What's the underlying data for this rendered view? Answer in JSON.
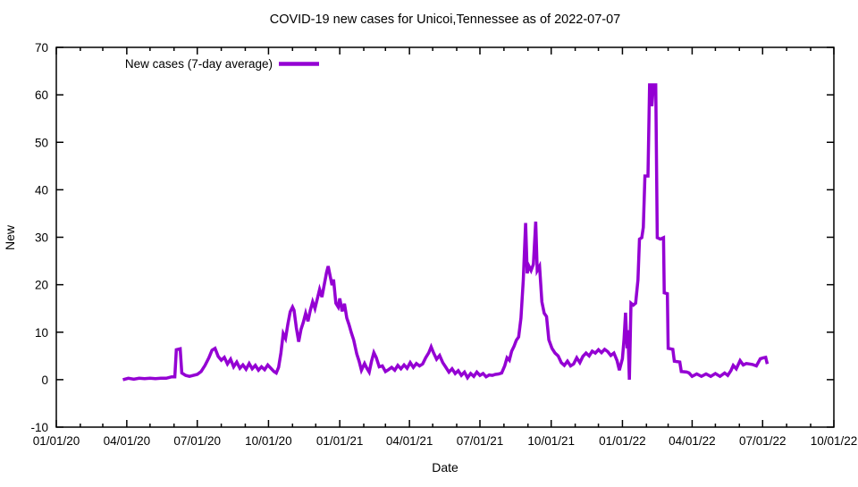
{
  "window": {
    "background": "#FFFFFF"
  },
  "chart_data": {
    "type": "line",
    "title": "COVID-19 new cases for Unicoi,Tennessee as of 2022-07-07",
    "xlabel": "Date",
    "ylabel": "New",
    "ylim": [
      -10,
      70
    ],
    "xlim": [
      "2020-01-01",
      "2022-10-01"
    ],
    "grid": false,
    "axis_color": "#000000",
    "y_ticks": [
      -10,
      0,
      10,
      20,
      30,
      40,
      50,
      60,
      70
    ],
    "x_major_ticks": [
      {
        "label": "01/01/20",
        "date": "2020-01-01"
      },
      {
        "label": "04/01/20",
        "date": "2020-04-01"
      },
      {
        "label": "07/01/20",
        "date": "2020-07-01"
      },
      {
        "label": "10/01/20",
        "date": "2020-10-01"
      },
      {
        "label": "01/01/21",
        "date": "2021-01-01"
      },
      {
        "label": "04/01/21",
        "date": "2021-04-01"
      },
      {
        "label": "07/01/21",
        "date": "2021-07-01"
      },
      {
        "label": "10/01/21",
        "date": "2021-10-01"
      },
      {
        "label": "01/01/22",
        "date": "2022-01-01"
      },
      {
        "label": "04/01/22",
        "date": "2022-04-01"
      },
      {
        "label": "07/01/22",
        "date": "2022-07-01"
      },
      {
        "label": "10/01/22",
        "date": "2022-10-01"
      }
    ],
    "x_minor_ticks": "monthly",
    "legend": {
      "position": "top-left"
    },
    "series": [
      {
        "name": "New cases (7-day average)",
        "color": "#9400D3",
        "points": [
          [
            "2020-03-27",
            0.0
          ],
          [
            "2020-04-03",
            0.3
          ],
          [
            "2020-04-10",
            0.1
          ],
          [
            "2020-04-17",
            0.3
          ],
          [
            "2020-04-24",
            0.2
          ],
          [
            "2020-05-01",
            0.3
          ],
          [
            "2020-05-08",
            0.2
          ],
          [
            "2020-05-15",
            0.3
          ],
          [
            "2020-05-22",
            0.3
          ],
          [
            "2020-05-29",
            0.6
          ],
          [
            "2020-06-02",
            0.6
          ],
          [
            "2020-06-04",
            6.3
          ],
          [
            "2020-06-09",
            6.5
          ],
          [
            "2020-06-11",
            1.4
          ],
          [
            "2020-06-16",
            0.9
          ],
          [
            "2020-06-21",
            0.7
          ],
          [
            "2020-06-26",
            0.9
          ],
          [
            "2020-07-01",
            1.1
          ],
          [
            "2020-07-06",
            1.7
          ],
          [
            "2020-07-11",
            3.0
          ],
          [
            "2020-07-16",
            4.6
          ],
          [
            "2020-07-20",
            6.2
          ],
          [
            "2020-07-24",
            6.6
          ],
          [
            "2020-07-28",
            4.9
          ],
          [
            "2020-08-01",
            4.1
          ],
          [
            "2020-08-05",
            4.7
          ],
          [
            "2020-08-09",
            3.3
          ],
          [
            "2020-08-13",
            4.3
          ],
          [
            "2020-08-17",
            2.7
          ],
          [
            "2020-08-21",
            3.7
          ],
          [
            "2020-08-25",
            2.4
          ],
          [
            "2020-08-29",
            3.1
          ],
          [
            "2020-09-02",
            2.2
          ],
          [
            "2020-09-06",
            3.4
          ],
          [
            "2020-09-10",
            2.3
          ],
          [
            "2020-09-14",
            3.0
          ],
          [
            "2020-09-18",
            2.0
          ],
          [
            "2020-09-22",
            2.7
          ],
          [
            "2020-09-26",
            2.1
          ],
          [
            "2020-09-30",
            3.1
          ],
          [
            "2020-10-04",
            2.4
          ],
          [
            "2020-10-08",
            1.7
          ],
          [
            "2020-10-11",
            1.4
          ],
          [
            "2020-10-14",
            2.6
          ],
          [
            "2020-10-17",
            5.6
          ],
          [
            "2020-10-20",
            9.7
          ],
          [
            "2020-10-23",
            8.7
          ],
          [
            "2020-10-26",
            11.7
          ],
          [
            "2020-10-29",
            14.3
          ],
          [
            "2020-11-01",
            15.3
          ],
          [
            "2020-11-03",
            14.6
          ],
          [
            "2020-11-06",
            10.9
          ],
          [
            "2020-11-09",
            8.0
          ],
          [
            "2020-11-12",
            10.6
          ],
          [
            "2020-11-15",
            12.1
          ],
          [
            "2020-11-18",
            14.0
          ],
          [
            "2020-11-21",
            12.3
          ],
          [
            "2020-11-24",
            14.6
          ],
          [
            "2020-11-27",
            16.4
          ],
          [
            "2020-11-30",
            15.0
          ],
          [
            "2020-12-03",
            17.0
          ],
          [
            "2020-12-06",
            19.0
          ],
          [
            "2020-12-09",
            17.4
          ],
          [
            "2020-12-12",
            20.0
          ],
          [
            "2020-12-15",
            22.6
          ],
          [
            "2020-12-17",
            23.9
          ],
          [
            "2020-12-19",
            22.3
          ],
          [
            "2020-12-22",
            19.9
          ],
          [
            "2020-12-24",
            21.1
          ],
          [
            "2020-12-27",
            16.1
          ],
          [
            "2020-12-30",
            15.3
          ],
          [
            "2021-01-01",
            17.1
          ],
          [
            "2021-01-04",
            14.4
          ],
          [
            "2021-01-07",
            16.0
          ],
          [
            "2021-01-10",
            13.0
          ],
          [
            "2021-01-13",
            11.6
          ],
          [
            "2021-01-16",
            9.9
          ],
          [
            "2021-01-19",
            8.4
          ],
          [
            "2021-01-23",
            5.4
          ],
          [
            "2021-01-26",
            3.9
          ],
          [
            "2021-01-29",
            2.0
          ],
          [
            "2021-02-02",
            3.4
          ],
          [
            "2021-02-05",
            2.4
          ],
          [
            "2021-02-08",
            1.6
          ],
          [
            "2021-02-11",
            3.9
          ],
          [
            "2021-02-14",
            5.7
          ],
          [
            "2021-02-17",
            4.7
          ],
          [
            "2021-02-21",
            2.7
          ],
          [
            "2021-02-25",
            2.9
          ],
          [
            "2021-03-01",
            1.7
          ],
          [
            "2021-03-05",
            2.1
          ],
          [
            "2021-03-09",
            2.6
          ],
          [
            "2021-03-13",
            2.0
          ],
          [
            "2021-03-17",
            3.0
          ],
          [
            "2021-03-21",
            2.3
          ],
          [
            "2021-03-25",
            3.1
          ],
          [
            "2021-03-29",
            2.4
          ],
          [
            "2021-04-02",
            3.6
          ],
          [
            "2021-04-06",
            2.6
          ],
          [
            "2021-04-10",
            3.4
          ],
          [
            "2021-04-14",
            2.9
          ],
          [
            "2021-04-18",
            3.3
          ],
          [
            "2021-04-22",
            4.6
          ],
          [
            "2021-04-26",
            5.7
          ],
          [
            "2021-04-29",
            6.9
          ],
          [
            "2021-05-02",
            5.7
          ],
          [
            "2021-05-06",
            4.3
          ],
          [
            "2021-05-10",
            5.1
          ],
          [
            "2021-05-14",
            3.6
          ],
          [
            "2021-05-18",
            2.6
          ],
          [
            "2021-05-22",
            1.6
          ],
          [
            "2021-05-26",
            2.3
          ],
          [
            "2021-05-30",
            1.3
          ],
          [
            "2021-06-03",
            1.9
          ],
          [
            "2021-06-07",
            0.9
          ],
          [
            "2021-06-11",
            1.6
          ],
          [
            "2021-06-15",
            0.4
          ],
          [
            "2021-06-19",
            1.3
          ],
          [
            "2021-06-23",
            0.7
          ],
          [
            "2021-06-27",
            1.6
          ],
          [
            "2021-07-01",
            0.9
          ],
          [
            "2021-07-05",
            1.3
          ],
          [
            "2021-07-09",
            0.6
          ],
          [
            "2021-07-13",
            1.0
          ],
          [
            "2021-07-17",
            0.9
          ],
          [
            "2021-07-21",
            1.1
          ],
          [
            "2021-07-25",
            1.2
          ],
          [
            "2021-07-29",
            1.4
          ],
          [
            "2021-08-02",
            2.9
          ],
          [
            "2021-08-05",
            4.6
          ],
          [
            "2021-08-08",
            4.1
          ],
          [
            "2021-08-11",
            6.0
          ],
          [
            "2021-08-14",
            7.0
          ],
          [
            "2021-08-17",
            8.3
          ],
          [
            "2021-08-20",
            9.0
          ],
          [
            "2021-08-23",
            13.0
          ],
          [
            "2021-08-26",
            21.0
          ],
          [
            "2021-08-29",
            33.0
          ],
          [
            "2021-08-31",
            22.4
          ],
          [
            "2021-09-02",
            24.0
          ],
          [
            "2021-09-05",
            23.0
          ],
          [
            "2021-09-08",
            24.3
          ],
          [
            "2021-09-11",
            33.3
          ],
          [
            "2021-09-13",
            23.0
          ],
          [
            "2021-09-16",
            23.9
          ],
          [
            "2021-09-19",
            16.4
          ],
          [
            "2021-09-22",
            14.0
          ],
          [
            "2021-09-25",
            13.3
          ],
          [
            "2021-09-28",
            8.4
          ],
          [
            "2021-10-02",
            6.6
          ],
          [
            "2021-10-06",
            5.6
          ],
          [
            "2021-10-10",
            5.0
          ],
          [
            "2021-10-14",
            3.6
          ],
          [
            "2021-10-18",
            3.0
          ],
          [
            "2021-10-22",
            3.9
          ],
          [
            "2021-10-26",
            2.9
          ],
          [
            "2021-10-30",
            3.3
          ],
          [
            "2021-11-03",
            4.6
          ],
          [
            "2021-11-07",
            3.6
          ],
          [
            "2021-11-11",
            4.9
          ],
          [
            "2021-11-15",
            5.6
          ],
          [
            "2021-11-19",
            5.0
          ],
          [
            "2021-11-23",
            6.0
          ],
          [
            "2021-11-27",
            5.6
          ],
          [
            "2021-12-01",
            6.3
          ],
          [
            "2021-12-05",
            5.7
          ],
          [
            "2021-12-09",
            6.4
          ],
          [
            "2021-12-13",
            5.9
          ],
          [
            "2021-12-17",
            5.1
          ],
          [
            "2021-12-21",
            5.6
          ],
          [
            "2021-12-25",
            4.0
          ],
          [
            "2021-12-28",
            2.0
          ],
          [
            "2022-01-01",
            4.4
          ],
          [
            "2022-01-03",
            8.5
          ],
          [
            "2022-01-05",
            14.1
          ],
          [
            "2022-01-07",
            6.6
          ],
          [
            "2022-01-08",
            10.4
          ],
          [
            "2022-01-10",
            0.0
          ],
          [
            "2022-01-12",
            16.1
          ],
          [
            "2022-01-15",
            15.7
          ],
          [
            "2022-01-18",
            16.1
          ],
          [
            "2022-01-21",
            21.0
          ],
          [
            "2022-01-23",
            29.6
          ],
          [
            "2022-01-26",
            29.9
          ],
          [
            "2022-01-28",
            32.1
          ],
          [
            "2022-01-30",
            42.9
          ],
          [
            "2022-02-03",
            42.9
          ],
          [
            "2022-02-05",
            62.1
          ],
          [
            "2022-02-07",
            62.1
          ],
          [
            "2022-02-08",
            57.6
          ],
          [
            "2022-02-10",
            62.1
          ],
          [
            "2022-02-13",
            62.1
          ],
          [
            "2022-02-15",
            29.9
          ],
          [
            "2022-02-19",
            29.6
          ],
          [
            "2022-02-23",
            29.9
          ],
          [
            "2022-02-24",
            18.3
          ],
          [
            "2022-02-28",
            18.1
          ],
          [
            "2022-03-01",
            6.6
          ],
          [
            "2022-03-07",
            6.4
          ],
          [
            "2022-03-09",
            3.9
          ],
          [
            "2022-03-16",
            3.7
          ],
          [
            "2022-03-18",
            1.7
          ],
          [
            "2022-03-25",
            1.6
          ],
          [
            "2022-03-28",
            1.4
          ],
          [
            "2022-04-01",
            0.7
          ],
          [
            "2022-04-07",
            1.2
          ],
          [
            "2022-04-13",
            0.7
          ],
          [
            "2022-04-19",
            1.2
          ],
          [
            "2022-04-25",
            0.7
          ],
          [
            "2022-05-01",
            1.3
          ],
          [
            "2022-05-07",
            0.7
          ],
          [
            "2022-05-13",
            1.4
          ],
          [
            "2022-05-17",
            0.9
          ],
          [
            "2022-05-21",
            1.9
          ],
          [
            "2022-05-24",
            3.0
          ],
          [
            "2022-05-28",
            2.3
          ],
          [
            "2022-06-02",
            4.0
          ],
          [
            "2022-06-06",
            3.1
          ],
          [
            "2022-06-10",
            3.4
          ],
          [
            "2022-06-14",
            3.3
          ],
          [
            "2022-06-18",
            3.2
          ],
          [
            "2022-06-23",
            2.9
          ],
          [
            "2022-06-28",
            4.4
          ],
          [
            "2022-07-02",
            4.6
          ],
          [
            "2022-07-05",
            4.7
          ],
          [
            "2022-07-07",
            3.3
          ]
        ]
      }
    ]
  }
}
